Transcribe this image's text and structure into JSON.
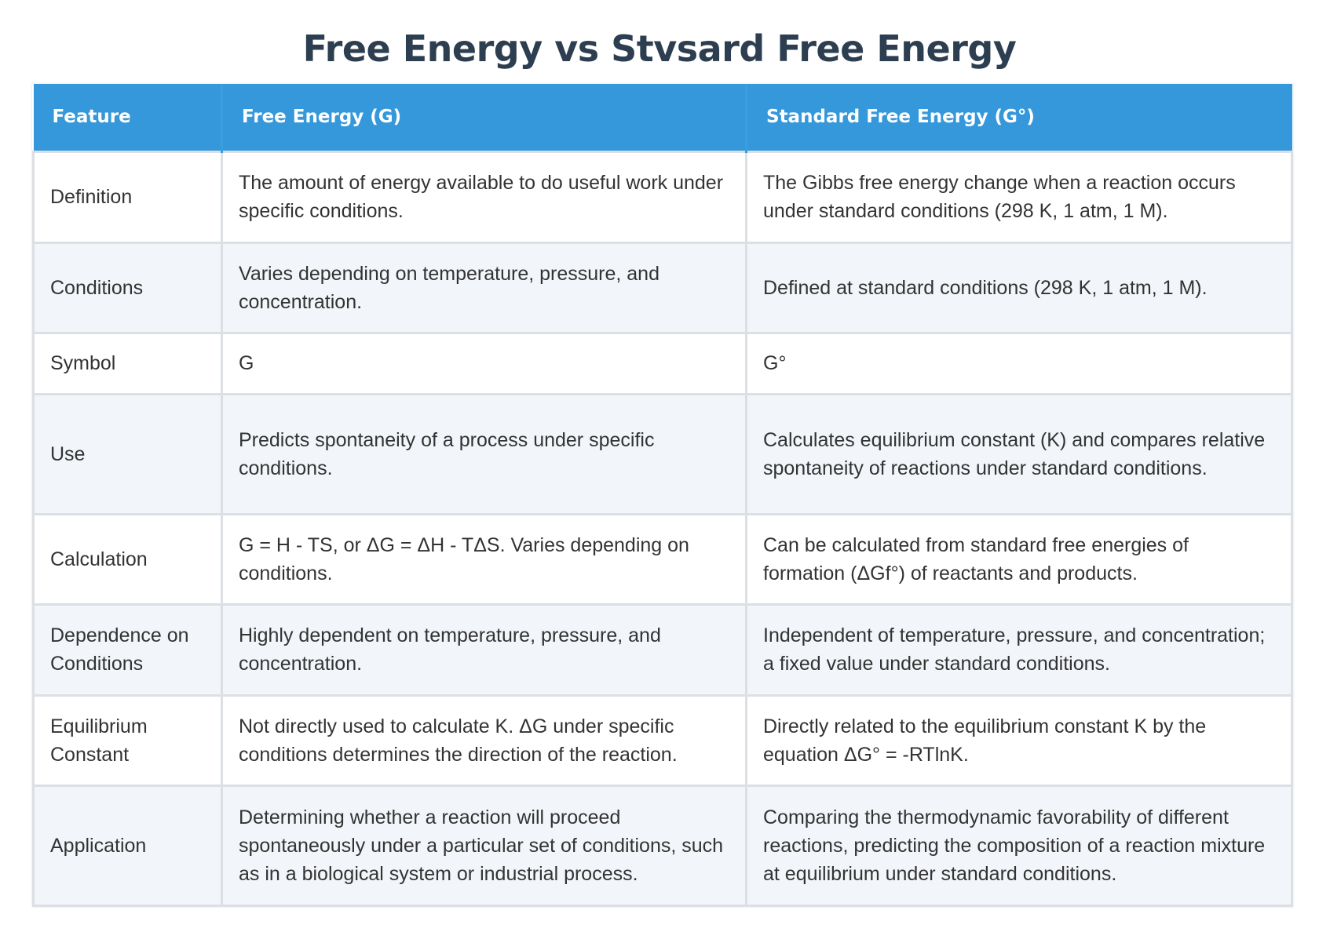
{
  "title": "Free Energy vs Stvsard Free Energy",
  "colors": {
    "title": "#2c3e50",
    "header_bg": "#3498db",
    "header_text": "#ffffff",
    "row_alt_bg": "#f2f5f9",
    "border": "#dcdfe3"
  },
  "table": {
    "headers": [
      "Feature",
      "Free Energy (G)",
      "Standard Free Energy (G°)"
    ],
    "rows": [
      {
        "feature": "Definition",
        "free_energy": "The amount of energy available to do useful work under specific conditions.",
        "standard_free_energy": "The Gibbs free energy change when a reaction occurs under standard conditions (298 K, 1 atm, 1 M)."
      },
      {
        "feature": "Conditions",
        "free_energy": "Varies depending on temperature, pressure, and concentration.",
        "standard_free_energy": "Defined at standard conditions (298 K, 1 atm, 1 M)."
      },
      {
        "feature": "Symbol",
        "free_energy": "G",
        "standard_free_energy": "G°"
      },
      {
        "feature": "Use",
        "free_energy": "Predicts spontaneity of a process under specific conditions.",
        "standard_free_energy": "Calculates equilibrium constant (K) and compares relative spontaneity of reactions under standard conditions."
      },
      {
        "feature": "Calculation",
        "free_energy": "G = H - TS, or ΔG = ΔH - TΔS. Varies depending on conditions.",
        "standard_free_energy": "Can be calculated from standard free energies of formation (ΔGf°) of reactants and products."
      },
      {
        "feature": "Dependence on Conditions",
        "free_energy": "Highly dependent on temperature, pressure, and concentration.",
        "standard_free_energy": "Independent of temperature, pressure, and concentration; a fixed value under standard conditions."
      },
      {
        "feature": "Equilibrium Constant",
        "free_energy": "Not directly used to calculate K. ΔG under specific conditions determines the direction of the reaction.",
        "standard_free_energy": "Directly related to the equilibrium constant K by the equation ΔG° = -RTlnK."
      },
      {
        "feature": "Application",
        "free_energy": "Determining whether a reaction will proceed spontaneously under a particular set of conditions, such as in a biological system or industrial process.",
        "standard_free_energy": "Comparing the thermodynamic favorability of different reactions, predicting the composition of a reaction mixture at equilibrium under standard conditions."
      }
    ]
  }
}
